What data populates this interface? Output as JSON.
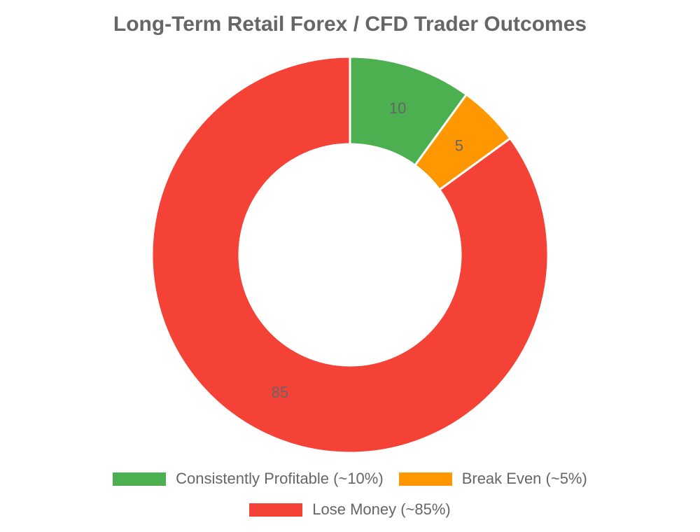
{
  "chart_data": {
    "type": "pie",
    "style": "donut",
    "title": "Long-Term Retail Forex / CFD Trader Outcomes",
    "categories": [
      "Consistently Profitable (~10%)",
      "Break Even (~5%)",
      "Lose Money (~85%)"
    ],
    "values": [
      10,
      5,
      85
    ],
    "data_labels": [
      "10",
      "5",
      "85"
    ],
    "colors": [
      "#4caf50",
      "#ff9800",
      "#f44336"
    ],
    "legend_position": "bottom"
  }
}
